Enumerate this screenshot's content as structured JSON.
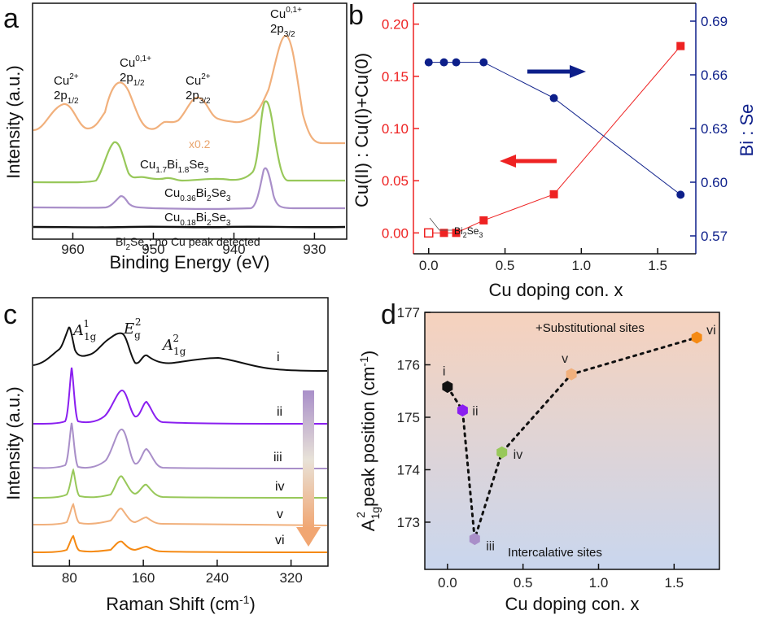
{
  "colors": {
    "black": "#111111",
    "purple": "#8a1ff0",
    "lilac": "#a98fc9",
    "green": "#98c85a",
    "peach": "#f1b07c",
    "orange": "#f58a14",
    "red": "#ee2222",
    "navy": "#0d1f8a",
    "bg_top": "#f6d2bd",
    "bg_bottom": "#c9d6ee"
  },
  "chart_data": [
    {
      "panel": "a",
      "type": "line",
      "xlabel": "Binding Energy (eV)",
      "ylabel": "Intensity (a.u.)",
      "xlim": [
        965,
        926
      ],
      "xticks": [
        "960",
        "950",
        "940",
        "930"
      ],
      "peak_labels": [
        {
          "species": "Cu2+",
          "orbital": "2p1/2",
          "x": 961
        },
        {
          "species": "Cu0,1+",
          "orbital": "2p1/2",
          "x": 952
        },
        {
          "species": "Cu2+",
          "orbital": "2p3/2",
          "x": 941
        },
        {
          "species": "Cu0,1+",
          "orbital": "2p3/2",
          "x": 932
        }
      ],
      "scale_note": "x0.2",
      "series": [
        {
          "name": "Cu1.7Bi1.8Se3",
          "color": "#f1b07c"
        },
        {
          "name": "Cu1.7Bi1.8Se3",
          "color": "#98c85a"
        },
        {
          "name": "Cu0.36Bi2Se3",
          "color": "#a98fc9"
        },
        {
          "name": "Cu0.18Bi2Se3",
          "color": "#a98fc9"
        },
        {
          "name": "Bi2Se3: no Cu peak detected",
          "color": "#111111"
        }
      ],
      "series_labels": {
        "s1": "Cu1.7Bi1.8Se3",
        "s2": "Cu0.36Bi2Se3",
        "s3": "Cu0.18Bi2Se3",
        "s4": "Bi2Se3: no Cu peak detected"
      }
    },
    {
      "panel": "b",
      "type": "scatter",
      "xlabel": "Cu doping con. x",
      "ylabel_left": "Cu(II) : Cu(I)+Cu(0)",
      "ylabel_right": "Bi : Se",
      "xlim": [
        -0.1,
        1.75
      ],
      "ylim_left": [
        -0.02,
        0.22
      ],
      "ylim_right": [
        0.56,
        0.7
      ],
      "xticks": [
        "0.0",
        "0.5",
        "1.0",
        "1.5"
      ],
      "yticks_left": [
        "0.00",
        "0.05",
        "0.10",
        "0.15",
        "0.20"
      ],
      "yticks_right": [
        "0.57",
        "0.60",
        "0.63",
        "0.66",
        "0.69"
      ],
      "series": [
        {
          "axis": "left",
          "color": "#ee2222",
          "x": [
            0.0,
            0.1,
            0.18,
            0.36,
            0.82,
            1.65
          ],
          "y": [
            0.0,
            0.0,
            0.0,
            0.012,
            0.037,
            0.179
          ],
          "first_open": true
        },
        {
          "axis": "right",
          "color": "#0d1f8a",
          "x": [
            0.0,
            0.1,
            0.18,
            0.36,
            0.82,
            1.65
          ],
          "y": [
            0.667,
            0.667,
            0.667,
            0.667,
            0.647,
            0.593
          ]
        }
      ],
      "annotation": "Bi2Se3"
    },
    {
      "panel": "c",
      "type": "line",
      "xlabel": "Raman Shift (cm-1)",
      "ylabel": "Intensity (a.u.)",
      "xlim": [
        40,
        360
      ],
      "xticks": [
        "80",
        "160",
        "240",
        "320"
      ],
      "peak_labels": [
        "A1g1",
        "Eg2",
        "A1g2"
      ],
      "series": [
        {
          "name": "i",
          "color": "#111111"
        },
        {
          "name": "ii",
          "color": "#8a1ff0"
        },
        {
          "name": "iii",
          "color": "#a98fc9"
        },
        {
          "name": "iv",
          "color": "#98c85a"
        },
        {
          "name": "v",
          "color": "#f1b07c"
        },
        {
          "name": "vi",
          "color": "#f58a14"
        }
      ]
    },
    {
      "panel": "d",
      "type": "scatter",
      "xlabel": "Cu doping con. x",
      "ylabel": "A1g2 peak position (cm-1)",
      "xlim": [
        -0.15,
        1.8
      ],
      "ylim": [
        172.1,
        177.0
      ],
      "xticks": [
        "0.0",
        "0.5",
        "1.0",
        "1.5"
      ],
      "yticks": [
        "173",
        "174",
        "175",
        "176",
        "177"
      ],
      "points": [
        {
          "label": "i",
          "x": 0.0,
          "y": 175.58,
          "color": "#111111"
        },
        {
          "label": "ii",
          "x": 0.1,
          "y": 175.13,
          "color": "#8a1ff0"
        },
        {
          "label": "iii",
          "x": 0.18,
          "y": 172.68,
          "color": "#a98fc9"
        },
        {
          "label": "iv",
          "x": 0.36,
          "y": 174.33,
          "color": "#98c85a"
        },
        {
          "label": "v",
          "x": 0.82,
          "y": 175.82,
          "color": "#f1b07c"
        },
        {
          "label": "vi",
          "x": 1.65,
          "y": 176.52,
          "color": "#f58a14"
        }
      ],
      "region_labels": {
        "top": "+Substitutional sites",
        "bottom": "Intercalative sites"
      }
    }
  ],
  "panel_letters": {
    "a": "a",
    "b": "b",
    "c": "c",
    "d": "d"
  }
}
